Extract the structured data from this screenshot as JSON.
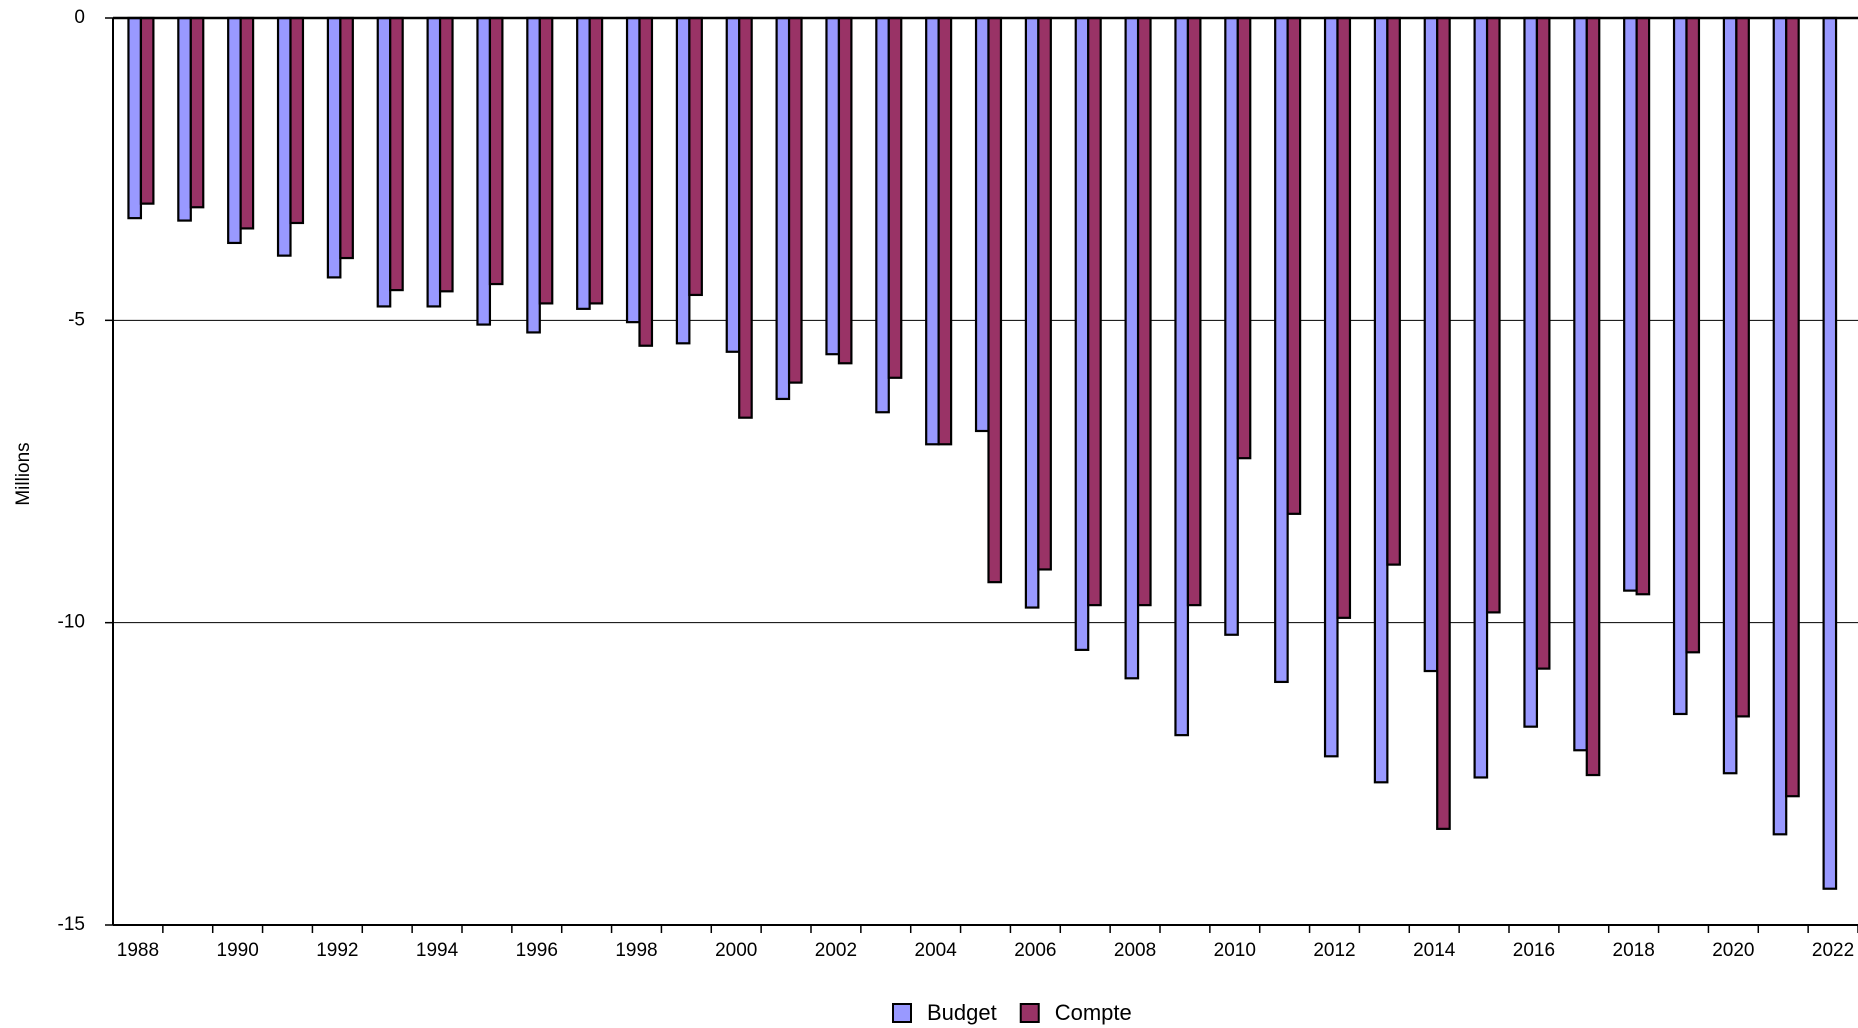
{
  "chart_data": {
    "type": "bar",
    "y_label": "Millions",
    "categories": [
      "1988",
      null,
      "1990",
      null,
      "1992",
      null,
      "1994",
      null,
      "1996",
      null,
      "1998",
      null,
      "2000",
      null,
      "2002",
      null,
      "2004",
      null,
      "2006",
      null,
      "2008",
      null,
      "2010",
      null,
      "2012",
      null,
      "2014",
      null,
      "2016",
      null,
      "2018",
      null,
      "2020",
      null,
      "2022"
    ],
    "series": [
      {
        "name": "Budget",
        "color": "#9999ff",
        "values": [
          -3.31,
          -3.35,
          -3.72,
          -3.93,
          -4.29,
          -4.77,
          -4.77,
          -5.07,
          -5.2,
          -4.81,
          -5.03,
          -5.38,
          -5.52,
          -6.3,
          -5.56,
          -6.52,
          -7.05,
          -6.83,
          -9.75,
          -10.45,
          -10.92,
          -11.86,
          -10.2,
          -10.98,
          -12.21,
          -12.64,
          -10.8,
          -12.56,
          -11.72,
          -12.11,
          -9.47,
          -11.51,
          -12.49,
          -13.5,
          -14.4
        ]
      },
      {
        "name": "Compte",
        "color": "#993366",
        "values": [
          -3.07,
          -3.13,
          -3.48,
          -3.39,
          -3.97,
          -4.5,
          -4.52,
          -4.4,
          -4.72,
          -4.72,
          -5.42,
          -4.58,
          -6.61,
          -6.03,
          -5.71,
          -5.95,
          -7.05,
          -9.33,
          -9.12,
          -9.71,
          -9.71,
          -9.71,
          -7.28,
          -8.2,
          -9.92,
          -9.04,
          -13.41,
          -9.83,
          -10.76,
          -12.52,
          -9.53,
          -10.49,
          -11.55,
          -12.87,
          null
        ]
      }
    ],
    "ylim": [
      -15,
      0
    ],
    "yticks": [
      0,
      -5,
      -10,
      -15
    ],
    "grid": true,
    "legend": "bottom"
  }
}
